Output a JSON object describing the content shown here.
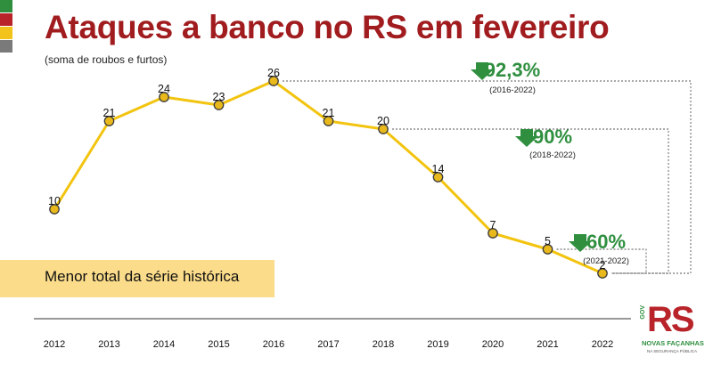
{
  "title": "Ataques a banco no RS em fevereiro",
  "subtitle": "(soma de roubos e furtos)",
  "banner": "Menor total da série histórica",
  "colors": {
    "title": "#a11c1f",
    "line": "#f2c40f",
    "marker": "#e9b91c",
    "green": "#2f8f3f",
    "banner": "#fbdc8a",
    "flag": [
      "#2f8f3f",
      "#b8242a",
      "#f2c31a",
      "#7a7a7a"
    ]
  },
  "chart_data": {
    "type": "line",
    "title": "Ataques a banco no RS em fevereiro",
    "subtitle": "(soma de roubos e furtos)",
    "x": [
      "2012",
      "2013",
      "2014",
      "2015",
      "2016",
      "2017",
      "2018",
      "2019",
      "2020",
      "2021",
      "2022"
    ],
    "values": [
      10,
      21,
      24,
      23,
      26,
      21,
      20,
      14,
      7,
      5,
      2
    ],
    "ylim": [
      0,
      28
    ],
    "grid": false,
    "annotations": [
      {
        "text": "92,3%",
        "period": "(2016-2022)",
        "from": "2016",
        "to": "2022",
        "direction": "down"
      },
      {
        "text": "90%",
        "period": "(2018-2022)",
        "from": "2018",
        "to": "2022",
        "direction": "down"
      },
      {
        "text": "60%",
        "period": "(2021-2022)",
        "from": "2021",
        "to": "2022",
        "direction": "down"
      }
    ]
  },
  "logo": {
    "brand": "RS",
    "gov": "GOV",
    "line1": "NOVAS FAÇANHAS",
    "line2": "NA SEGURANÇA PÚBLICA"
  }
}
